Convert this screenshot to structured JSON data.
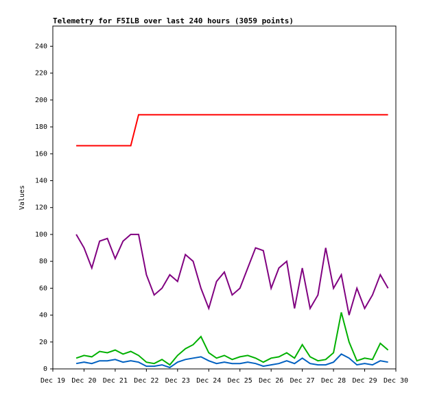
{
  "chart_data": {
    "type": "line",
    "title": "Telemetry for F5ILB over last 240 hours (3059 points)",
    "y_label": "Values",
    "x": [
      19.75,
      20,
      20.25,
      20.5,
      20.75,
      21,
      21.25,
      21.5,
      21.75,
      22,
      22.25,
      22.5,
      22.75,
      23,
      23.25,
      23.5,
      23.75,
      24,
      24.25,
      24.5,
      24.75,
      25,
      25.25,
      25.5,
      25.75,
      26,
      26.25,
      26.5,
      26.75,
      27,
      27.25,
      27.5,
      27.75,
      28,
      28.25,
      28.5,
      28.75,
      29,
      29.25,
      29.5,
      29.75
    ],
    "series": [
      {
        "color": "#ff0000",
        "values": [
          166,
          166,
          166,
          166,
          166,
          166,
          166,
          166,
          189,
          189,
          189,
          189,
          189,
          189,
          189,
          189,
          189,
          189,
          189,
          189,
          189,
          189,
          189,
          189,
          189,
          189,
          189,
          189,
          189,
          189,
          189,
          189,
          189,
          189,
          189,
          189,
          189,
          189,
          189,
          189,
          189
        ]
      },
      {
        "color": "#800080",
        "values": [
          100,
          90,
          75,
          95,
          97,
          82,
          95,
          100,
          100,
          70,
          55,
          60,
          70,
          65,
          85,
          80,
          60,
          45,
          65,
          72,
          55,
          60,
          75,
          90,
          88,
          60,
          75,
          80,
          45,
          75,
          45,
          55,
          90,
          60,
          70,
          40,
          60,
          45,
          55,
          70,
          60
        ]
      },
      {
        "color": "#00b000",
        "values": [
          8,
          10,
          9,
          13,
          12,
          14,
          11,
          13,
          10,
          5,
          4,
          7,
          3,
          10,
          15,
          18,
          24,
          12,
          8,
          10,
          7,
          9,
          10,
          8,
          5,
          8,
          9,
          12,
          8,
          18,
          9,
          6,
          7,
          12,
          42,
          20,
          6,
          8,
          7,
          19,
          14
        ]
      },
      {
        "color": "#0060c0",
        "values": [
          4,
          5,
          4,
          6,
          6,
          7,
          5,
          6,
          5,
          2,
          2,
          3,
          1,
          5,
          7,
          8,
          9,
          6,
          4,
          5,
          4,
          4,
          5,
          4,
          2,
          3,
          4,
          6,
          4,
          8,
          4,
          3,
          3,
          5,
          11,
          8,
          3,
          4,
          3,
          6,
          5
        ]
      }
    ],
    "xlim": [
      19,
      30
    ],
    "xticks": [
      {
        "value": 19,
        "label": "Dec 19"
      },
      {
        "value": 20,
        "label": "Dec 20"
      },
      {
        "value": 21,
        "label": "Dec 21"
      },
      {
        "value": 22,
        "label": "Dec 22"
      },
      {
        "value": 23,
        "label": "Dec 23"
      },
      {
        "value": 24,
        "label": "Dec 24"
      },
      {
        "value": 25,
        "label": "Dec 25"
      },
      {
        "value": 26,
        "label": "Dec 26"
      },
      {
        "value": 27,
        "label": "Dec 27"
      },
      {
        "value": 28,
        "label": "Dec 28"
      },
      {
        "value": 29,
        "label": "Dec 29"
      },
      {
        "value": 30,
        "label": "Dec 30"
      }
    ],
    "ylim": [
      0,
      255
    ],
    "yticks": [
      0,
      20,
      40,
      60,
      80,
      100,
      120,
      140,
      160,
      180,
      200,
      220,
      240
    ]
  }
}
